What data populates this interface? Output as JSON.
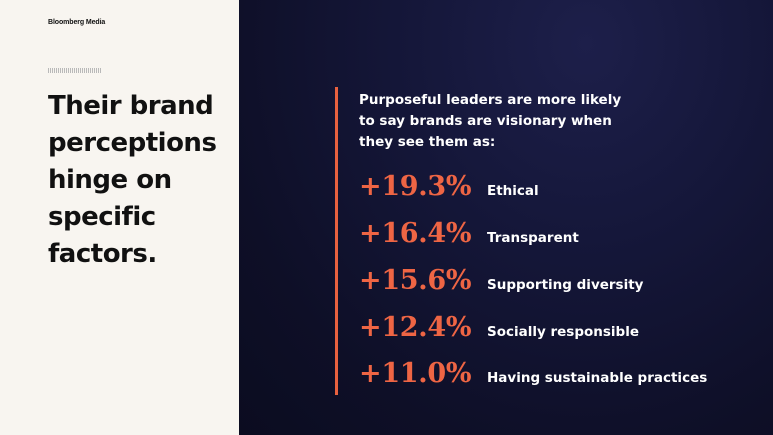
{
  "brand": "Bloomberg Media",
  "headline": "Their brand\nperceptions\nhinge on\nspecific\nfactors.",
  "intro": "Purposeful leaders are more likely\nto say brands are visionary when\nthey see them as:",
  "stats": [
    {
      "value": "+19.3%",
      "label": "Ethical"
    },
    {
      "value": "+16.4%",
      "label": "Transparent"
    },
    {
      "value": "+15.6%",
      "label": "Supporting diversity"
    },
    {
      "value": "+12.4%",
      "label": "Socially responsible"
    },
    {
      "value": "+11.0%",
      "label": "Having sustainable practices"
    }
  ],
  "colors": {
    "accent": "#ee6544",
    "left_background": "#f8f5f0",
    "right_background": "#11132f",
    "text_dark": "#111111",
    "text_light": "#ffffff"
  }
}
